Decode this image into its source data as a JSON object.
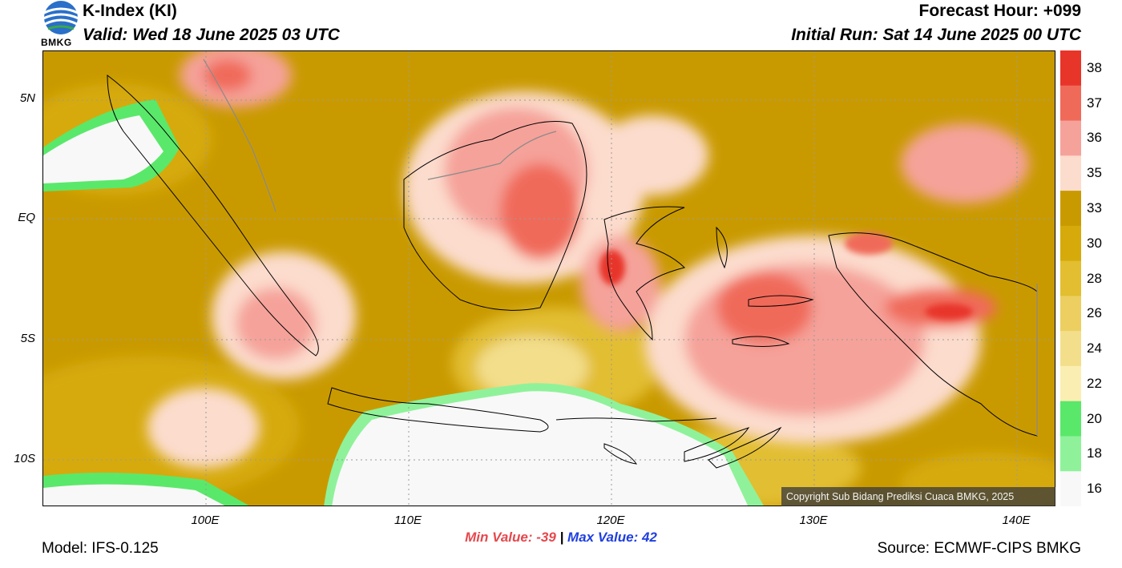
{
  "header": {
    "title": "K-Index (KI)",
    "valid": "Valid: Wed 18 June 2025 03 UTC",
    "forecast_hour": "Forecast Hour: +099",
    "initial_run": "Initial Run: Sat 14 June 2025 00 UTC",
    "logo_text": "BMKG"
  },
  "axes": {
    "lat_labels": [
      "5N",
      "EQ",
      "5S",
      "10S"
    ],
    "lon_labels": [
      "100E",
      "110E",
      "120E",
      "130E",
      "140E"
    ]
  },
  "legend": {
    "labels": [
      "38",
      "37",
      "36",
      "35",
      "33",
      "30",
      "28",
      "26",
      "24",
      "22",
      "20",
      "18",
      "16"
    ],
    "colors": [
      "#e8352a",
      "#f06a5a",
      "#f5a29a",
      "#fcdccd",
      "#c99a00",
      "#d6aa0a",
      "#e2be30",
      "#eccf60",
      "#f3de8c",
      "#fbeeb2",
      "#5ae86a",
      "#8ff29a",
      "#f8f8f8"
    ]
  },
  "stats": {
    "min": "Min Value: -39",
    "separator": "|",
    "max": "Max Value:  42"
  },
  "footer": {
    "model": "Model: IFS-0.125",
    "source": "Source: ECMWF-CIPS BMKG",
    "copyright": "Copyright Sub Bidang Prediksi Cuaca BMKG, 2025"
  }
}
